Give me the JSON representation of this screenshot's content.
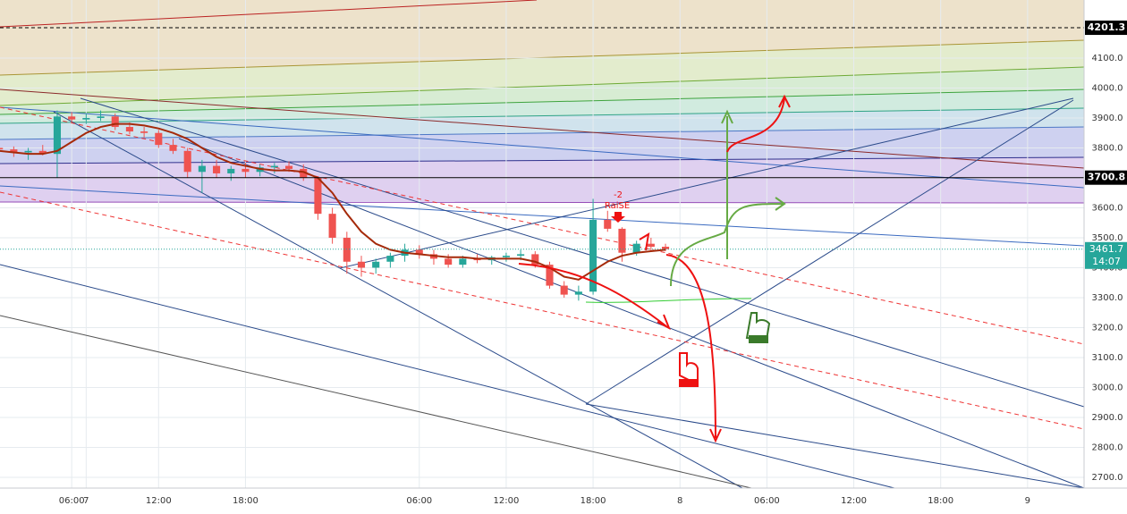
{
  "chart_data": {
    "type": "candlestick",
    "x": [
      1,
      2,
      3,
      4,
      5,
      6,
      7,
      8,
      9,
      10,
      11,
      12,
      13,
      14,
      15,
      16,
      17,
      18,
      19,
      20,
      21,
      22,
      23,
      24,
      25,
      26,
      27,
      28,
      29,
      30,
      31,
      32,
      33,
      34,
      35,
      36,
      37,
      38,
      39,
      40,
      41,
      42,
      43,
      44,
      45,
      46,
      47
    ],
    "open": [
      3800,
      3795,
      3785,
      3790,
      3780,
      3905,
      3895,
      3900,
      3905,
      3870,
      3855,
      3850,
      3810,
      3790,
      3720,
      3740,
      3715,
      3730,
      3720,
      3735,
      3740,
      3730,
      3700,
      3580,
      3500,
      3420,
      3400,
      3420,
      3440,
      3460,
      3445,
      3430,
      3410,
      3430,
      3425,
      3435,
      3440,
      3445,
      3410,
      3340,
      3310,
      3320,
      3560,
      3530,
      3450,
      3480,
      3470
    ],
    "high": [
      3815,
      3805,
      3800,
      3810,
      3925,
      3920,
      3915,
      3925,
      3915,
      3885,
      3870,
      3860,
      3830,
      3800,
      3760,
      3760,
      3740,
      3750,
      3745,
      3750,
      3755,
      3745,
      3705,
      3600,
      3520,
      3440,
      3430,
      3450,
      3480,
      3475,
      3460,
      3445,
      3440,
      3445,
      3440,
      3450,
      3460,
      3455,
      3420,
      3355,
      3340,
      3630,
      3590,
      3535,
      3490,
      3500,
      3480
    ],
    "low": [
      3790,
      3770,
      3760,
      3775,
      3700,
      3885,
      3880,
      3890,
      3860,
      3845,
      3835,
      3800,
      3780,
      3700,
      3650,
      3700,
      3690,
      3700,
      3705,
      3715,
      3720,
      3690,
      3560,
      3480,
      3380,
      3370,
      3380,
      3400,
      3420,
      3430,
      3410,
      3400,
      3400,
      3415,
      3410,
      3420,
      3425,
      3400,
      3330,
      3300,
      3290,
      3310,
      3520,
      3420,
      3440,
      3455,
      3455
    ],
    "close": [
      3795,
      3785,
      3790,
      3780,
      3905,
      3895,
      3900,
      3905,
      3870,
      3855,
      3850,
      3810,
      3790,
      3720,
      3740,
      3715,
      3730,
      3720,
      3735,
      3740,
      3730,
      3700,
      3580,
      3500,
      3420,
      3400,
      3420,
      3440,
      3460,
      3445,
      3430,
      3410,
      3430,
      3425,
      3435,
      3440,
      3445,
      3410,
      3340,
      3310,
      3320,
      3560,
      3530,
      3450,
      3480,
      3470,
      3461.7
    ],
    "moving_average": [
      3790,
      3785,
      3780,
      3780,
      3790,
      3820,
      3850,
      3870,
      3880,
      3880,
      3875,
      3865,
      3850,
      3830,
      3800,
      3770,
      3750,
      3740,
      3730,
      3725,
      3725,
      3720,
      3700,
      3650,
      3580,
      3520,
      3480,
      3460,
      3450,
      3445,
      3440,
      3435,
      3435,
      3430,
      3430,
      3430,
      3430,
      3420,
      3400,
      3370,
      3360,
      3390,
      3420,
      3440,
      3450,
      3455,
      3460
    ],
    "up_color": "#26a69a",
    "down_color": "#ef5350",
    "ma_color": "#a52a0a",
    "xlim": [
      1.05,
      75.9
    ],
    "xticks": [
      {
        "value": 6,
        "label": "06:00"
      },
      {
        "value": 12,
        "label": "12:00"
      },
      {
        "value": 18,
        "label": "18:00"
      },
      7,
      {
        "value": 30,
        "label": "06:00"
      },
      {
        "value": 36,
        "label": "12:00"
      },
      {
        "value": 42,
        "label": "18:00"
      },
      {
        "value": 48,
        "label": "8"
      },
      {
        "value": 54,
        "label": "06:00"
      },
      {
        "value": 60,
        "label": "12:00"
      },
      {
        "value": 66,
        "label": "18:00"
      },
      {
        "value": 72,
        "label": "9"
      }
    ],
    "ylim": [
      2664,
      4294
    ],
    "yticks": [
      {
        "value": 2700,
        "label": "2700.0"
      },
      {
        "value": 2800,
        "label": "2800.0"
      },
      {
        "value": 2900,
        "label": "2900.0"
      },
      {
        "value": 3000,
        "label": "3000.0"
      },
      {
        "value": 3100,
        "label": "3100.0"
      },
      {
        "value": 3200,
        "label": "3200.0"
      },
      {
        "value": 3300,
        "label": "3300.0"
      },
      {
        "value": 3400,
        "label": "3400.0"
      },
      {
        "value": 3500,
        "label": "3500.0"
      },
      {
        "value": 3600,
        "label": "3600.0"
      },
      {
        "value": 3700,
        "label": "3700.0"
      },
      {
        "value": 3800,
        "label": "3800.0"
      },
      {
        "value": 3900,
        "label": "3900.0"
      },
      {
        "value": 4000,
        "label": "4000.0"
      },
      {
        "value": 4100,
        "label": "4100.0"
      }
    ],
    "grid": true,
    "horizontal_lines": [
      4201.3,
      3700.8
    ],
    "last_price": 3461.7,
    "countdown": "14:07",
    "annotations": [
      "-2",
      "RaiSE"
    ]
  }
}
